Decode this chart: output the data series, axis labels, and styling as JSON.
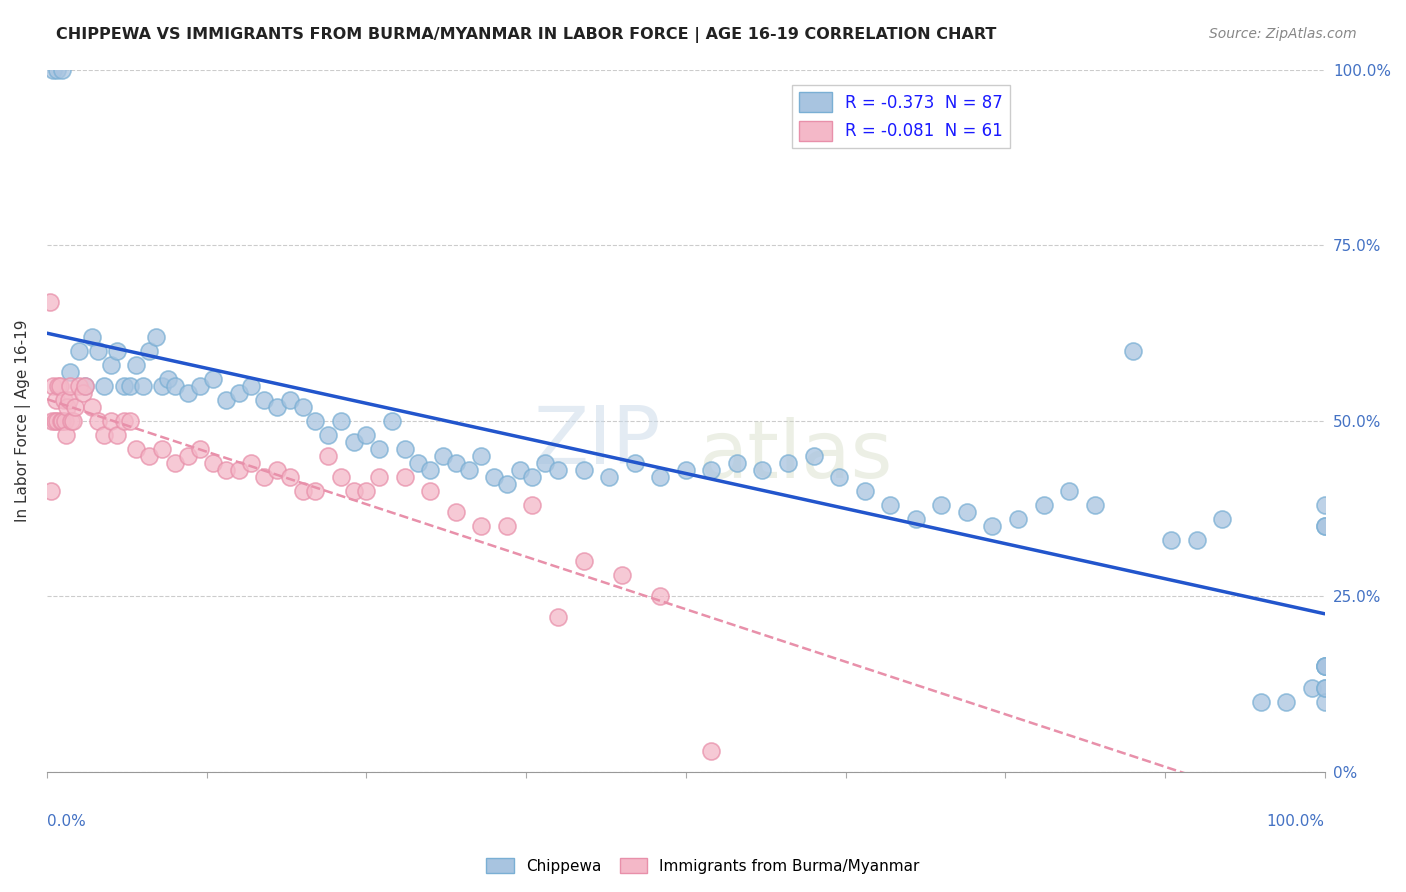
{
  "title": "CHIPPEWA VS IMMIGRANTS FROM BURMA/MYANMAR IN LABOR FORCE | AGE 16-19 CORRELATION CHART",
  "source": "Source: ZipAtlas.com",
  "ylabel": "In Labor Force | Age 16-19",
  "ytick_vals": [
    0,
    25,
    50,
    75,
    100
  ],
  "ytick_labels": [
    "0%",
    "25.0%",
    "50.0%",
    "75.0%",
    "100.0%"
  ],
  "chippewa_R": -0.373,
  "chippewa_N": 87,
  "burma_R": -0.081,
  "burma_N": 61,
  "chippewa_color": "#a8c4e0",
  "chippewa_edge": "#7aafd4",
  "burma_color": "#f4b8c8",
  "burma_edge": "#e890aa",
  "chippewa_line_color": "#2255cc",
  "burma_line_color": "#e890aa",
  "watermark_text": "ZIPatlas",
  "legend_R1": "R = -0.373  N = 87",
  "legend_R2": "R = -0.081  N = 61",
  "legend_text_color": "#1a1aff",
  "chippewa_x": [
    0.5,
    0.8,
    1.2,
    1.8,
    2.5,
    3.0,
    3.5,
    4.0,
    4.5,
    5.0,
    5.5,
    6.0,
    6.5,
    7.0,
    7.5,
    8.0,
    8.5,
    9.0,
    9.5,
    10.0,
    11.0,
    12.0,
    13.0,
    14.0,
    15.0,
    16.0,
    17.0,
    18.0,
    19.0,
    20.0,
    21.0,
    22.0,
    23.0,
    24.0,
    25.0,
    26.0,
    27.0,
    28.0,
    29.0,
    30.0,
    31.0,
    32.0,
    33.0,
    34.0,
    35.0,
    36.0,
    37.0,
    38.0,
    39.0,
    40.0,
    42.0,
    44.0,
    46.0,
    48.0,
    50.0,
    52.0,
    54.0,
    56.0,
    58.0,
    60.0,
    62.0,
    64.0,
    66.0,
    68.0,
    70.0,
    72.0,
    74.0,
    76.0,
    78.0,
    80.0,
    82.0,
    85.0,
    88.0,
    90.0,
    92.0,
    95.0,
    97.0,
    99.0,
    100.0,
    100.0,
    100.0,
    100.0,
    100.0,
    100.0,
    100.0,
    100.0,
    100.0
  ],
  "chippewa_y": [
    100.0,
    100.0,
    100.0,
    57.0,
    60.0,
    55.0,
    62.0,
    60.0,
    55.0,
    58.0,
    60.0,
    55.0,
    55.0,
    58.0,
    55.0,
    60.0,
    62.0,
    55.0,
    56.0,
    55.0,
    54.0,
    55.0,
    56.0,
    53.0,
    54.0,
    55.0,
    53.0,
    52.0,
    53.0,
    52.0,
    50.0,
    48.0,
    50.0,
    47.0,
    48.0,
    46.0,
    50.0,
    46.0,
    44.0,
    43.0,
    45.0,
    44.0,
    43.0,
    45.0,
    42.0,
    41.0,
    43.0,
    42.0,
    44.0,
    43.0,
    43.0,
    42.0,
    44.0,
    42.0,
    43.0,
    43.0,
    44.0,
    43.0,
    44.0,
    45.0,
    42.0,
    40.0,
    38.0,
    36.0,
    38.0,
    37.0,
    35.0,
    36.0,
    38.0,
    40.0,
    38.0,
    60.0,
    33.0,
    33.0,
    36.0,
    10.0,
    10.0,
    12.0,
    35.0,
    38.0,
    15.0,
    15.0,
    12.0,
    35.0,
    10.0,
    12.0,
    15.0
  ],
  "burma_x": [
    0.2,
    0.3,
    0.4,
    0.5,
    0.6,
    0.7,
    0.8,
    0.9,
    1.0,
    1.1,
    1.2,
    1.3,
    1.4,
    1.5,
    1.6,
    1.7,
    1.8,
    1.9,
    2.0,
    2.2,
    2.5,
    2.8,
    3.0,
    3.5,
    4.0,
    4.5,
    5.0,
    5.5,
    6.0,
    6.5,
    7.0,
    8.0,
    9.0,
    10.0,
    11.0,
    12.0,
    13.0,
    14.0,
    15.0,
    16.0,
    17.0,
    18.0,
    19.0,
    20.0,
    21.0,
    22.0,
    23.0,
    24.0,
    25.0,
    26.0,
    28.0,
    30.0,
    32.0,
    34.0,
    36.0,
    38.0,
    40.0,
    42.0,
    45.0,
    48.0,
    52.0
  ],
  "burma_y": [
    67.0,
    40.0,
    50.0,
    55.0,
    50.0,
    53.0,
    50.0,
    55.0,
    55.0,
    50.0,
    50.0,
    53.0,
    50.0,
    48.0,
    52.0,
    53.0,
    55.0,
    50.0,
    50.0,
    52.0,
    55.0,
    54.0,
    55.0,
    52.0,
    50.0,
    48.0,
    50.0,
    48.0,
    50.0,
    50.0,
    46.0,
    45.0,
    46.0,
    44.0,
    45.0,
    46.0,
    44.0,
    43.0,
    43.0,
    44.0,
    42.0,
    43.0,
    42.0,
    40.0,
    40.0,
    45.0,
    42.0,
    40.0,
    40.0,
    42.0,
    42.0,
    40.0,
    37.0,
    35.0,
    35.0,
    38.0,
    22.0,
    30.0,
    28.0,
    25.0,
    3.0
  ]
}
